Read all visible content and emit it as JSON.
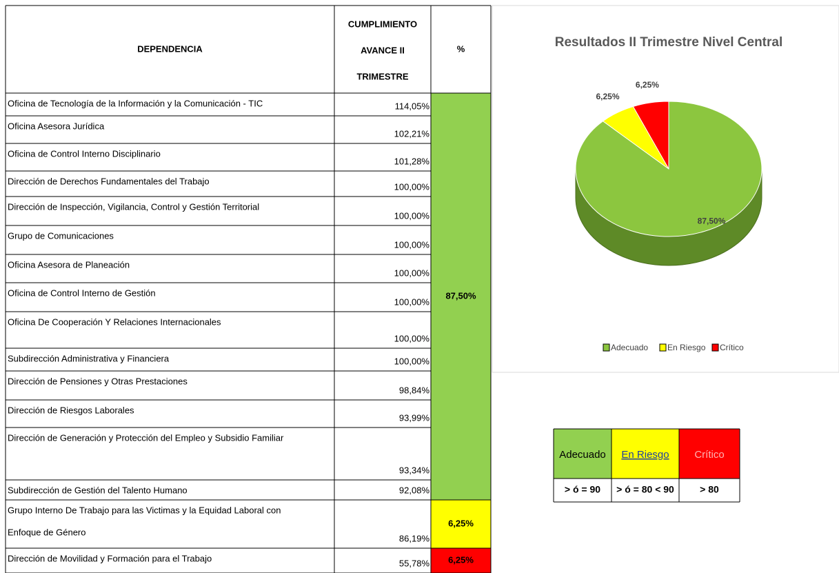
{
  "table": {
    "header": {
      "dependencia": "DEPENDENCIA",
      "cumplimiento": [
        "CUMPLIMIENTO",
        "AVANCE II",
        "TRIMESTRE"
      ],
      "percent": "%"
    },
    "rows": [
      [
        "Oficina de Tecnología de la Información y la Comunicación - TIC",
        "114,05%"
      ],
      [
        "Oficina Asesora Jurídica",
        "102,21%"
      ],
      [
        "Oficina de Control Interno Disciplinario",
        "101,28%"
      ],
      [
        "Dirección de Derechos Fundamentales del Trabajo",
        "100,00%"
      ],
      [
        "Dirección de Inspección, Vigilancia, Control y Gestión Territorial",
        "100,00%"
      ],
      [
        "Grupo de Comunicaciones",
        "100,00%"
      ],
      [
        "Oficina Asesora de Planeación",
        "100,00%"
      ],
      [
        "Oficina de Control Interno de Gestión",
        "100,00%"
      ],
      [
        "Oficina De Cooperación Y Relaciones Internacionales",
        "100,00%"
      ],
      [
        "Subdirección Administrativa y Financiera",
        "100,00%"
      ],
      [
        "Dirección de Pensiones y Otras Prestaciones",
        "98,84%"
      ],
      [
        "Dirección de Riesgos Laborales",
        "93,99%"
      ],
      [
        "Dirección de Generación y Protección del Empleo y Subsidio Familiar",
        "93,34%"
      ],
      [
        "Subdirección de Gestión del Talento Humano",
        "92,08%"
      ],
      [
        [
          "Grupo Interno De Trabajo para las Victimas y la Equidad Laboral con",
          "Enfoque de Género"
        ],
        "86,19%"
      ],
      [
        "Dirección de Movilidad y Formación para el Trabajo",
        "55,78%"
      ]
    ],
    "groups": [
      {
        "label": "87,50%",
        "color": "#92d050"
      },
      {
        "label": "6,25%",
        "color": "#ffff00"
      },
      {
        "label": "6,25%",
        "color": "#ff0000"
      }
    ]
  },
  "chart_data": {
    "type": "pie",
    "title": "Resultados II Trimestre Nivel Central",
    "categories": [
      "Adecuado",
      "En Riesgo",
      "Crítico"
    ],
    "values": [
      87.5,
      6.25,
      6.25
    ],
    "value_labels": [
      "87,50%",
      "6,25%",
      "6,25%"
    ],
    "colors": [
      "#8cc63f",
      "#ffff00",
      "#ff0000"
    ],
    "legend": "bottom"
  },
  "legend_table": {
    "header": [
      "Adecuado",
      "En Riesgo",
      "Crítico"
    ],
    "thresholds": [
      "> ó = 90",
      "> ó = 80 < 90",
      "> 80"
    ]
  }
}
